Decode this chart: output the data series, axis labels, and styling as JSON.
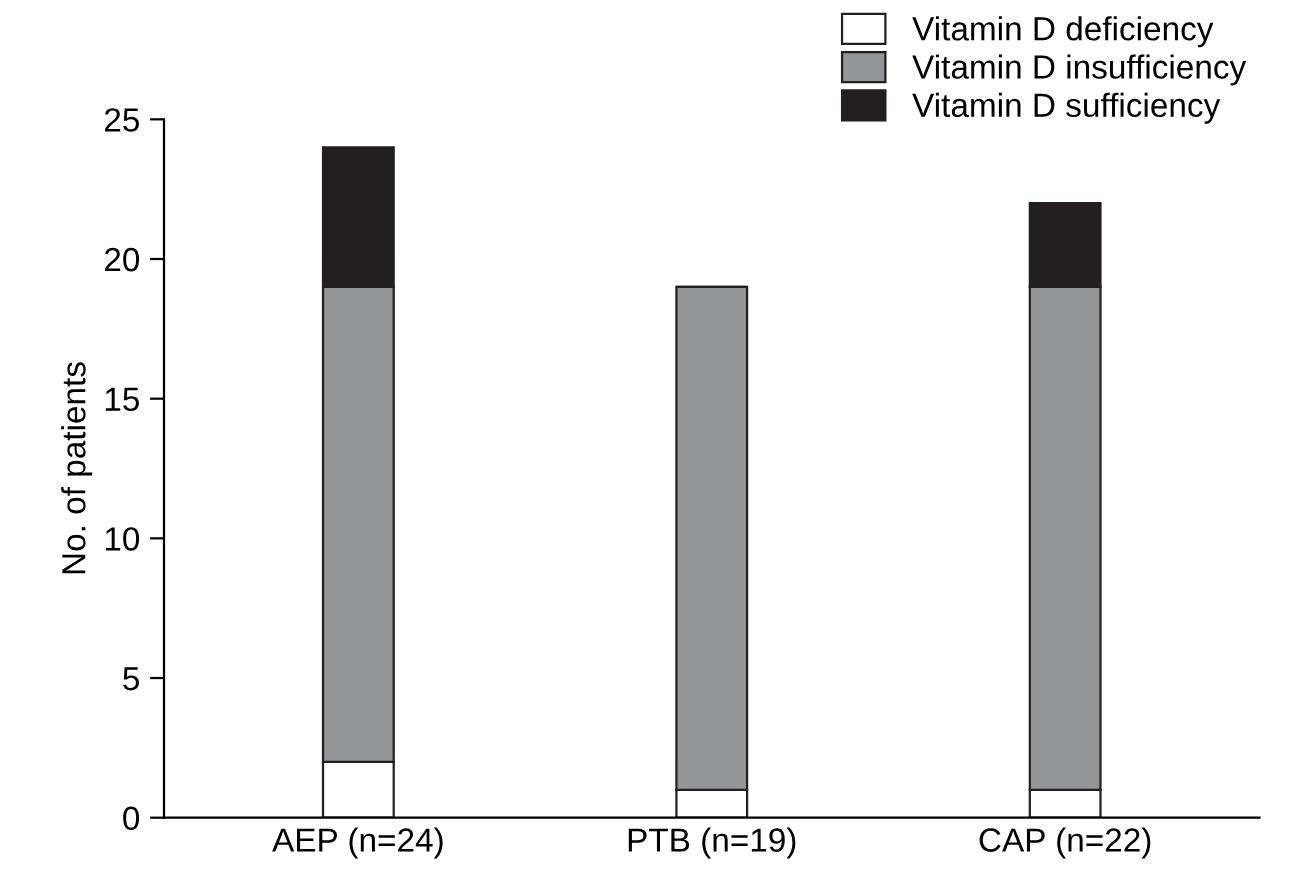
{
  "chart_data": {
    "type": "bar",
    "stacked": true,
    "ylabel": "No. of patients",
    "categories": [
      "AEP (n=24)",
      "PTB (n=19)",
      "CAP (n=22)"
    ],
    "series": [
      {
        "name": "Vitamin D deficiency",
        "color": "#ffffff",
        "values": [
          2,
          1,
          1
        ]
      },
      {
        "name": "Vitamin D insufficiency",
        "color": "#939598",
        "values": [
          17,
          18,
          18
        ]
      },
      {
        "name": "Vitamin D sufficiency",
        "color": "#231f20",
        "values": [
          5,
          0,
          3
        ]
      }
    ],
    "ylim": [
      0,
      25
    ],
    "yticks": [
      0,
      5,
      10,
      15,
      20,
      25
    ],
    "grid": false,
    "legend": "top right"
  }
}
